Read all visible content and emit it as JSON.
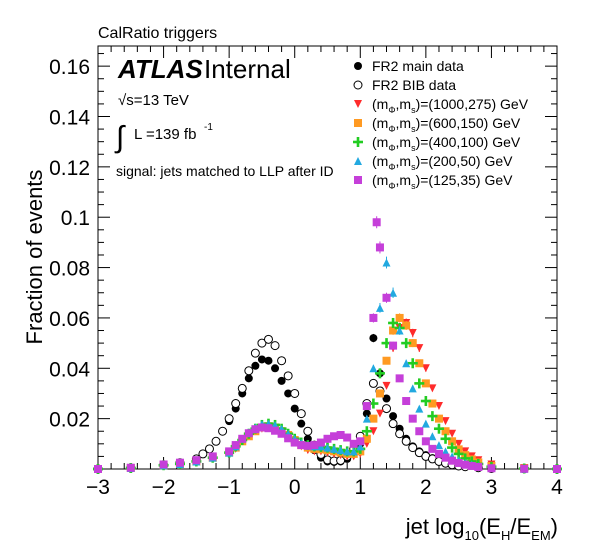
{
  "chart_data": {
    "type": "scatter",
    "title": "CalRatio triggers",
    "experiment": "ATLAS",
    "experiment_status": "Internal",
    "energy_prefix": "√s=13 TeV",
    "luminosity_text": "L =139 fb",
    "luminosity_exp": "-1",
    "selection_text": "signal: jets matched to LLP after ID",
    "ylabel": "Fraction of events",
    "xlabel_main": "jet log",
    "xlabel_sub": "10",
    "xlabel_paren_open": "(E",
    "xlabel_H": "H",
    "xlabel_slash": "/E",
    "xlabel_EM": "EM",
    "xlabel_paren_close": ")",
    "xlim": [
      -3,
      4
    ],
    "ylim": [
      0,
      0.168
    ],
    "xticks": [
      -3,
      -2,
      -1,
      0,
      1,
      2,
      3,
      4
    ],
    "xtick_labels": [
      "−3",
      "−2",
      "−1",
      "0",
      "1",
      "2",
      "3",
      "4"
    ],
    "yticks": [
      0.02,
      0.04,
      0.06,
      0.08,
      0.1,
      0.12,
      0.14,
      0.16
    ],
    "ytick_labels": [
      "0.02",
      "0.04",
      "0.06",
      "0.08",
      "0.1",
      "0.12",
      "0.14",
      "0.16"
    ],
    "grid": false,
    "legend_position": "top-right",
    "series": [
      {
        "name": "FR2 main data",
        "legend_plain": "FR2 main data",
        "marker": "filled-circle",
        "color": "#000000",
        "x": [
          -3.0,
          -2.5,
          -2.0,
          -1.75,
          -1.5,
          -1.4,
          -1.3,
          -1.2,
          -1.1,
          -1.0,
          -0.9,
          -0.8,
          -0.7,
          -0.6,
          -0.5,
          -0.4,
          -0.3,
          -0.2,
          -0.1,
          0.0,
          0.1,
          0.2,
          0.3,
          0.4,
          0.5,
          0.6,
          0.7,
          0.8,
          0.9,
          1.0,
          1.1,
          1.2,
          1.3,
          1.4,
          1.5,
          1.6,
          1.7,
          1.8,
          1.9,
          2.0,
          2.1,
          2.2,
          2.3,
          2.4,
          2.5,
          2.6,
          2.8,
          3.0,
          3.5,
          4.0
        ],
        "y": [
          0.0,
          0.0004,
          0.0015,
          0.0025,
          0.004,
          0.006,
          0.008,
          0.011,
          0.015,
          0.019,
          0.024,
          0.03,
          0.036,
          0.041,
          0.0435,
          0.043,
          0.04,
          0.035,
          0.03,
          0.024,
          0.018,
          0.012,
          0.0075,
          0.0045,
          0.003,
          0.0028,
          0.003,
          0.004,
          0.006,
          0.01,
          0.022,
          0.052,
          0.038,
          0.028,
          0.021,
          0.016,
          0.012,
          0.009,
          0.007,
          0.0055,
          0.0043,
          0.0033,
          0.0025,
          0.0018,
          0.0013,
          0.0009,
          0.0005,
          0.0002,
          0.0001,
          0.0
        ]
      },
      {
        "name": "FR2 BIB data",
        "legend_plain": "FR2 BIB data",
        "marker": "open-circle",
        "color": "#000000",
        "x": [
          -3.0,
          -2.5,
          -2.0,
          -1.75,
          -1.5,
          -1.4,
          -1.3,
          -1.2,
          -1.1,
          -1.0,
          -0.9,
          -0.8,
          -0.7,
          -0.6,
          -0.5,
          -0.4,
          -0.3,
          -0.2,
          -0.1,
          0.0,
          0.1,
          0.2,
          0.3,
          0.4,
          0.5,
          0.6,
          0.7,
          0.8,
          0.9,
          1.0,
          1.1,
          1.2,
          1.3,
          1.4,
          1.5,
          1.6,
          1.7,
          1.8,
          1.9,
          2.0,
          2.1,
          2.2,
          2.3,
          2.4,
          2.5,
          2.6,
          2.8,
          3.0,
          3.5,
          4.0
        ],
        "y": [
          0.0,
          0.0004,
          0.0015,
          0.0025,
          0.004,
          0.006,
          0.008,
          0.011,
          0.015,
          0.02,
          0.026,
          0.032,
          0.039,
          0.046,
          0.05,
          0.0515,
          0.049,
          0.043,
          0.037,
          0.03,
          0.022,
          0.015,
          0.0095,
          0.0058,
          0.0036,
          0.0032,
          0.0034,
          0.005,
          0.008,
          0.013,
          0.026,
          0.034,
          0.031,
          0.024,
          0.018,
          0.014,
          0.011,
          0.0085,
          0.0065,
          0.005,
          0.004,
          0.003,
          0.0023,
          0.0017,
          0.0012,
          0.0009,
          0.0005,
          0.0002,
          0.0001,
          0.0
        ]
      },
      {
        "name": "(mΦ,ms)=(1000,275) GeV",
        "legend_plain": "(m",
        "legend_sub1": "Φ",
        "legend_mid": ",m",
        "legend_sub2": "s",
        "legend_tail": ")=(1000,275) GeV",
        "marker": "triangle-down",
        "color": "#ff2b2b",
        "x": [
          -3.0,
          -2.5,
          -2.0,
          -1.75,
          -1.5,
          -1.25,
          -1.0,
          -0.9,
          -0.8,
          -0.7,
          -0.6,
          -0.5,
          -0.4,
          -0.3,
          -0.2,
          -0.1,
          0.0,
          0.1,
          0.2,
          0.3,
          0.4,
          0.5,
          0.6,
          0.7,
          0.8,
          0.9,
          1.0,
          1.1,
          1.2,
          1.3,
          1.4,
          1.5,
          1.6,
          1.7,
          1.8,
          1.9,
          2.0,
          2.1,
          2.2,
          2.3,
          2.4,
          2.5,
          2.6,
          2.7,
          2.8,
          3.0,
          3.5,
          4.0
        ],
        "y": [
          0.0,
          0.0004,
          0.0015,
          0.002,
          0.003,
          0.004,
          0.006,
          0.008,
          0.011,
          0.013,
          0.015,
          0.016,
          0.0165,
          0.016,
          0.015,
          0.013,
          0.011,
          0.009,
          0.0075,
          0.007,
          0.007,
          0.0065,
          0.006,
          0.0055,
          0.005,
          0.005,
          0.006,
          0.01,
          0.015,
          0.022,
          0.033,
          0.048,
          0.056,
          0.058,
          0.054,
          0.048,
          0.04,
          0.032,
          0.025,
          0.019,
          0.014,
          0.01,
          0.007,
          0.005,
          0.0035,
          0.0018,
          0.0004,
          0.0
        ]
      },
      {
        "name": "(mΦ,ms)=(600,150) GeV",
        "legend_plain": "(m",
        "legend_sub1": "Φ",
        "legend_mid": ",m",
        "legend_sub2": "s",
        "legend_tail": ")=(600,150) GeV",
        "marker": "square",
        "color": "#ff9a22",
        "x": [
          -3.0,
          -2.5,
          -2.0,
          -1.75,
          -1.5,
          -1.25,
          -1.0,
          -0.9,
          -0.8,
          -0.7,
          -0.6,
          -0.5,
          -0.4,
          -0.3,
          -0.2,
          -0.1,
          0.0,
          0.1,
          0.2,
          0.3,
          0.4,
          0.5,
          0.6,
          0.7,
          0.8,
          0.9,
          1.0,
          1.1,
          1.2,
          1.3,
          1.4,
          1.5,
          1.6,
          1.7,
          1.8,
          1.9,
          2.0,
          2.1,
          2.2,
          2.3,
          2.4,
          2.5,
          2.6,
          2.7,
          2.8,
          3.0,
          3.5,
          4.0
        ],
        "y": [
          0.0,
          0.0004,
          0.0015,
          0.002,
          0.003,
          0.0045,
          0.0065,
          0.0085,
          0.011,
          0.013,
          0.015,
          0.0165,
          0.017,
          0.0165,
          0.015,
          0.0135,
          0.0115,
          0.0095,
          0.0085,
          0.008,
          0.0078,
          0.0075,
          0.007,
          0.0065,
          0.006,
          0.006,
          0.007,
          0.012,
          0.02,
          0.03,
          0.043,
          0.055,
          0.06,
          0.057,
          0.05,
          0.042,
          0.034,
          0.026,
          0.02,
          0.015,
          0.011,
          0.0078,
          0.0055,
          0.0038,
          0.0026,
          0.0012,
          0.0003,
          0.0
        ]
      },
      {
        "name": "(mΦ,ms)=(400,100) GeV",
        "legend_plain": "(m",
        "legend_sub1": "Φ",
        "legend_mid": ",m",
        "legend_sub2": "s",
        "legend_tail": ")=(400,100) GeV",
        "marker": "cross",
        "color": "#22cc22",
        "x": [
          -3.0,
          -2.5,
          -2.0,
          -1.75,
          -1.5,
          -1.25,
          -1.0,
          -0.9,
          -0.8,
          -0.7,
          -0.6,
          -0.5,
          -0.4,
          -0.3,
          -0.2,
          -0.1,
          0.0,
          0.1,
          0.2,
          0.3,
          0.4,
          0.5,
          0.6,
          0.7,
          0.8,
          0.9,
          1.0,
          1.1,
          1.2,
          1.3,
          1.4,
          1.5,
          1.6,
          1.7,
          1.8,
          1.9,
          2.0,
          2.1,
          2.2,
          2.3,
          2.4,
          2.5,
          2.6,
          2.7,
          2.8,
          3.0,
          3.5,
          4.0
        ],
        "y": [
          0.0,
          0.0004,
          0.0015,
          0.002,
          0.003,
          0.0045,
          0.0065,
          0.009,
          0.0115,
          0.014,
          0.016,
          0.0175,
          0.018,
          0.0175,
          0.016,
          0.014,
          0.012,
          0.0105,
          0.0095,
          0.009,
          0.0088,
          0.0085,
          0.008,
          0.0075,
          0.007,
          0.007,
          0.008,
          0.015,
          0.026,
          0.038,
          0.05,
          0.058,
          0.056,
          0.05,
          0.042,
          0.034,
          0.027,
          0.021,
          0.016,
          0.012,
          0.0085,
          0.006,
          0.0042,
          0.003,
          0.002,
          0.0009,
          0.0002,
          0.0
        ]
      },
      {
        "name": "(mΦ,ms)=(200,50) GeV",
        "legend_plain": "(m",
        "legend_sub1": "Φ",
        "legend_mid": ",m",
        "legend_sub2": "s",
        "legend_tail": ")=(200,50) GeV",
        "marker": "triangle-up",
        "color": "#22a9e0",
        "x": [
          -3.0,
          -2.5,
          -2.0,
          -1.75,
          -1.5,
          -1.25,
          -1.0,
          -0.9,
          -0.8,
          -0.7,
          -0.6,
          -0.5,
          -0.4,
          -0.3,
          -0.2,
          -0.1,
          0.0,
          0.1,
          0.2,
          0.3,
          0.4,
          0.5,
          0.6,
          0.7,
          0.8,
          0.9,
          1.0,
          1.1,
          1.2,
          1.3,
          1.4,
          1.5,
          1.6,
          1.7,
          1.8,
          1.9,
          2.0,
          2.1,
          2.2,
          2.3,
          2.4,
          2.5,
          2.6,
          2.7,
          2.8,
          3.0,
          3.5,
          4.0
        ],
        "y": [
          0.0,
          0.0004,
          0.0015,
          0.002,
          0.003,
          0.0045,
          0.0065,
          0.009,
          0.012,
          0.0145,
          0.0165,
          0.0178,
          0.018,
          0.0175,
          0.016,
          0.014,
          0.012,
          0.0105,
          0.0095,
          0.009,
          0.009,
          0.0085,
          0.008,
          0.0075,
          0.007,
          0.007,
          0.009,
          0.02,
          0.04,
          0.064,
          0.082,
          0.07,
          0.055,
          0.042,
          0.032,
          0.024,
          0.018,
          0.013,
          0.0095,
          0.007,
          0.005,
          0.0035,
          0.0025,
          0.0018,
          0.0012,
          0.0005,
          0.0001,
          0.0
        ]
      },
      {
        "name": "(mΦ,ms)=(125,35) GeV",
        "legend_plain": "(m",
        "legend_sub1": "Φ",
        "legend_mid": ",m",
        "legend_sub2": "s",
        "legend_tail": ")=(125,35) GeV",
        "marker": "square",
        "color": "#c53fd9",
        "x": [
          -3.0,
          -2.5,
          -2.0,
          -1.75,
          -1.5,
          -1.25,
          -1.0,
          -0.9,
          -0.8,
          -0.7,
          -0.6,
          -0.5,
          -0.4,
          -0.3,
          -0.2,
          -0.1,
          0.0,
          0.1,
          0.2,
          0.3,
          0.4,
          0.5,
          0.6,
          0.7,
          0.8,
          0.9,
          1.0,
          1.1,
          1.2,
          1.25,
          1.3,
          1.4,
          1.5,
          1.6,
          1.7,
          1.8,
          1.9,
          2.0,
          2.1,
          2.2,
          2.3,
          2.4,
          2.5,
          2.6,
          2.7,
          2.8,
          3.0,
          3.5,
          4.0
        ],
        "y": [
          0.0,
          0.0005,
          0.0018,
          0.0025,
          0.0035,
          0.005,
          0.007,
          0.0095,
          0.012,
          0.0142,
          0.0158,
          0.0165,
          0.0162,
          0.0152,
          0.014,
          0.0122,
          0.0105,
          0.0095,
          0.0092,
          0.0095,
          0.0105,
          0.012,
          0.013,
          0.0135,
          0.0125,
          0.01,
          0.011,
          0.025,
          0.06,
          0.098,
          0.088,
          0.068,
          0.049,
          0.036,
          0.027,
          0.02,
          0.015,
          0.011,
          0.008,
          0.006,
          0.0045,
          0.0033,
          0.0024,
          0.0017,
          0.0012,
          0.0008,
          0.0003,
          0.0001,
          0.0
        ]
      }
    ]
  }
}
